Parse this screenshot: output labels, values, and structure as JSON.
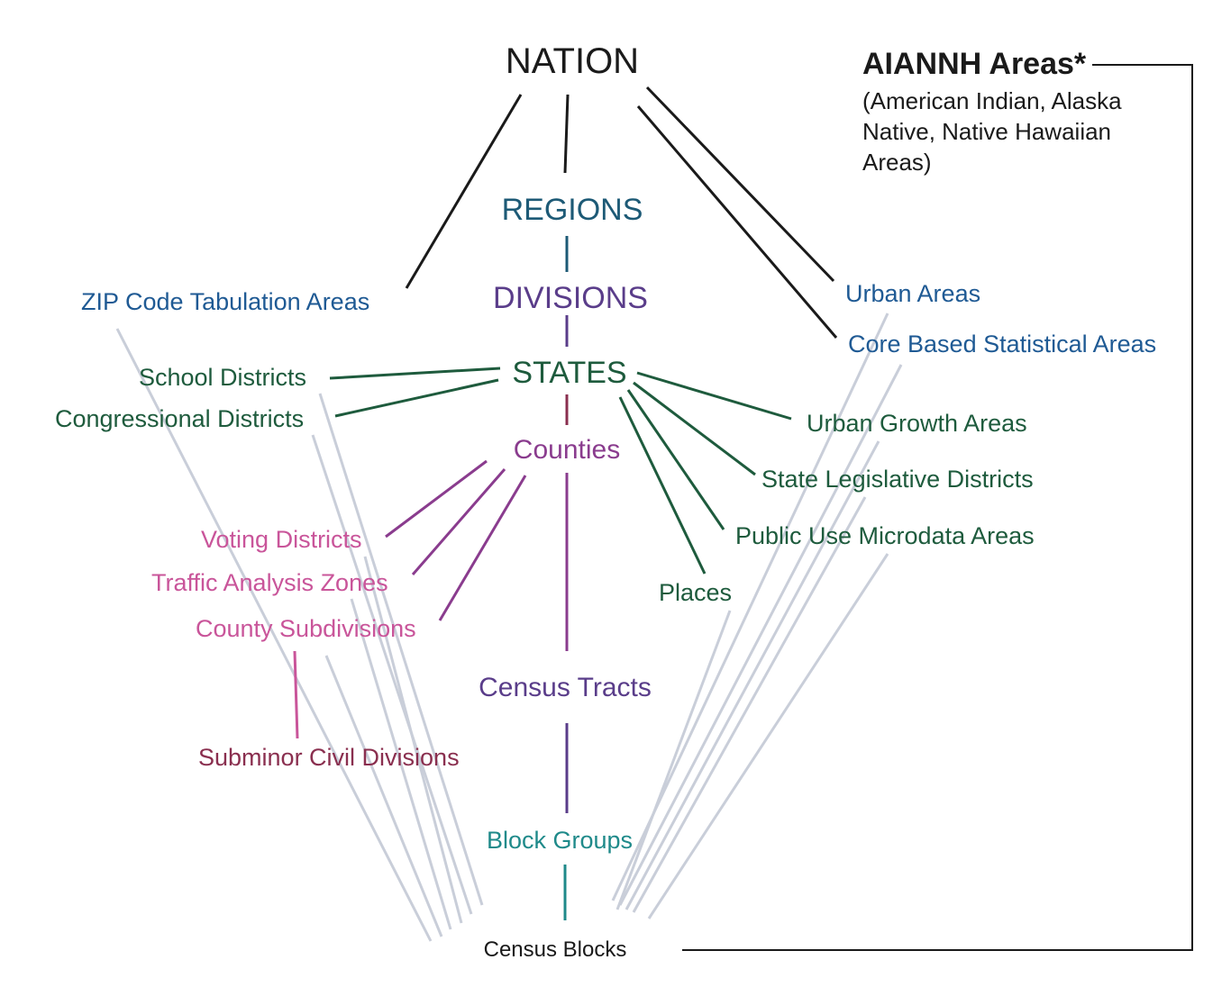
{
  "colors": {
    "black": "#1a1a1a",
    "blue": "#1f5a94",
    "navy_teal": "#1d5a76",
    "purple": "#5a3d8a",
    "green": "#1e5b3d",
    "magenta": "#8a3c8e",
    "pink": "#c9559a",
    "maroon": "#8a2f4f",
    "teal": "#1f8a8a",
    "gray_line": "#c9ced9"
  },
  "nodes": {
    "nation": "NATION",
    "regions": "REGIONS",
    "divisions": "DIVISIONS",
    "states": "STATES",
    "counties": "Counties",
    "census_tracts": "Census Tracts",
    "block_groups": "Block Groups",
    "census_blocks": "Census Blocks",
    "zcta": "ZIP Code Tabulation Areas",
    "school_districts": "School Districts",
    "congressional_districts": "Congressional Districts",
    "voting_districts": "Voting Districts",
    "traffic_analysis_zones": "Traffic Analysis Zones",
    "county_subdivisions": "County Subdivisions",
    "subminor_civil_divisions": "Subminor Civil Divisions",
    "urban_areas": "Urban Areas",
    "cbsa": "Core Based Statistical Areas",
    "urban_growth_areas": "Urban Growth Areas",
    "state_legislative_districts": "State Legislative Districts",
    "puma": "Public Use Microdata Areas",
    "places": "Places"
  },
  "aiannh": {
    "title": "AIANNH Areas*",
    "subtitle_lines": [
      "(American Indian, Alaska",
      "Native, Native Hawaiian",
      "Areas)"
    ]
  }
}
